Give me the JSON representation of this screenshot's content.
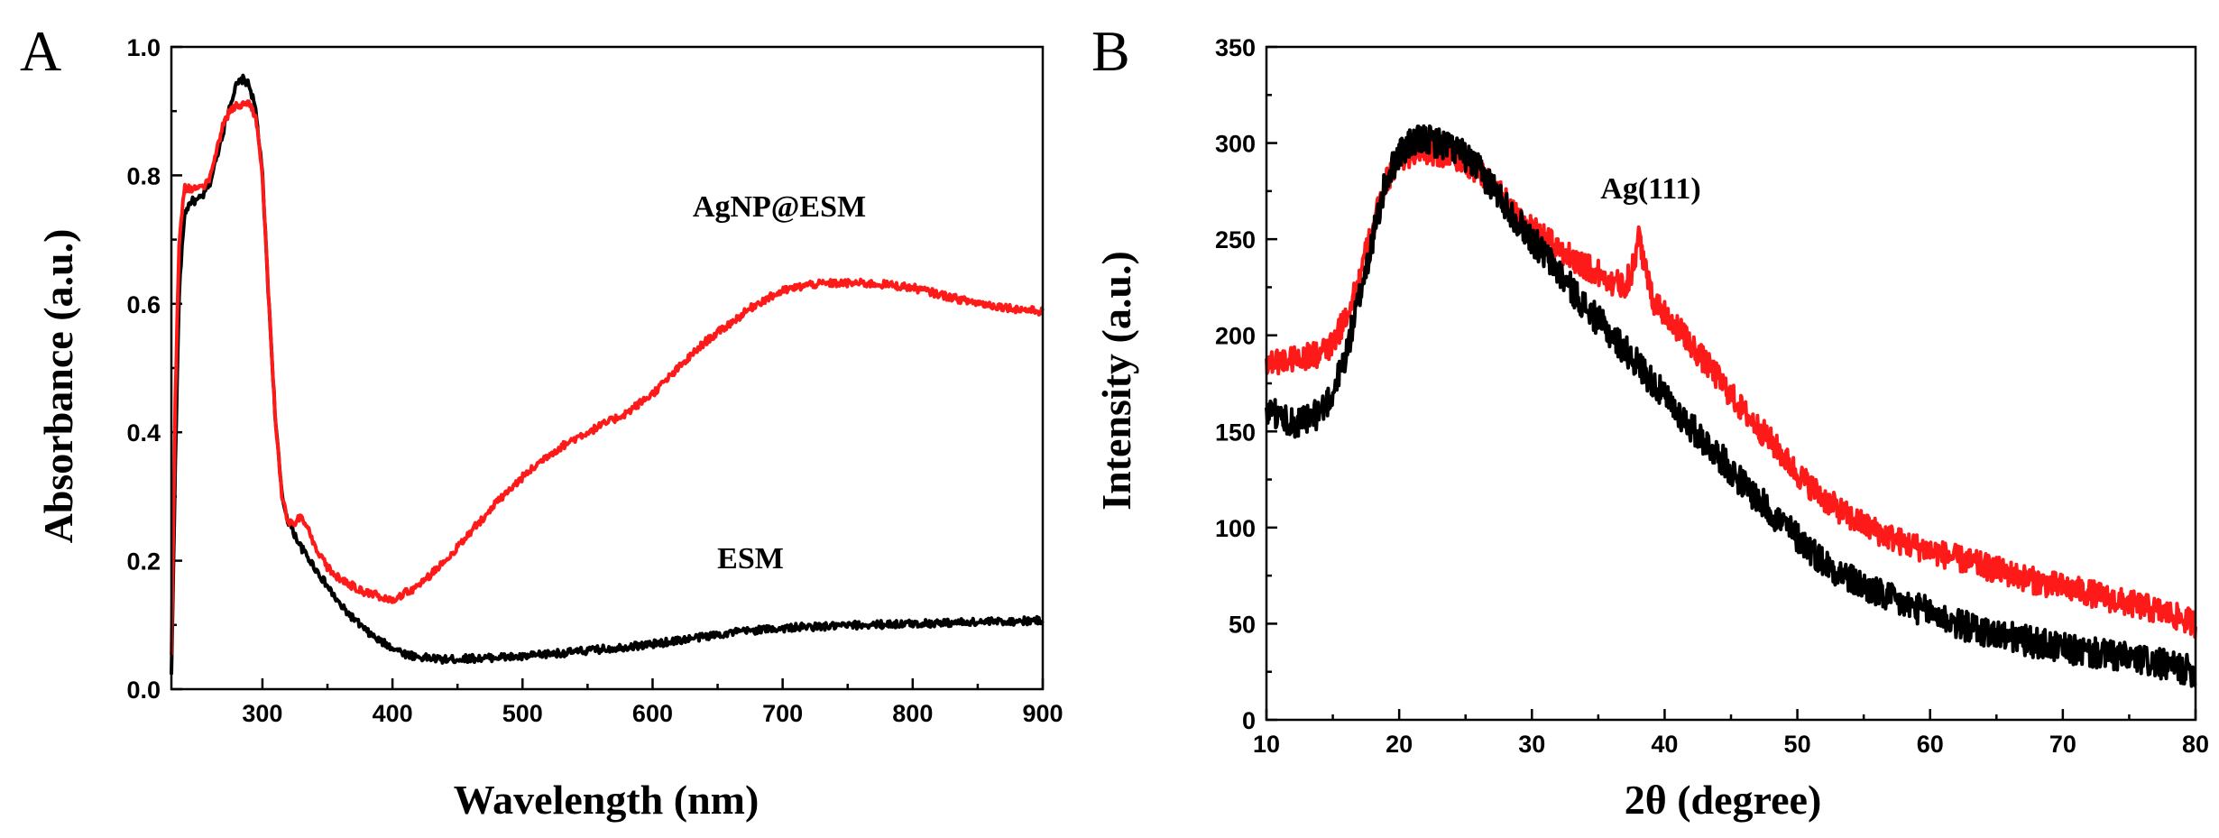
{
  "colors": {
    "red": "#ff1a1a",
    "black": "#000000"
  },
  "chart_data": [
    {
      "panel": "A",
      "type": "line",
      "xlabel": "Wavelength (nm)",
      "ylabel": "Absorbance (a.u.)",
      "xlim": [
        230,
        900
      ],
      "ylim": [
        0.0,
        1.0
      ],
      "xticks": [
        300,
        400,
        500,
        600,
        700,
        800,
        900
      ],
      "yticks": [
        0.0,
        0.2,
        0.4,
        0.6,
        0.8,
        1.0
      ],
      "ytick_labels": [
        "0.0",
        "0.2",
        "0.4",
        "0.6",
        "0.8",
        "1.0"
      ],
      "annotations": [
        {
          "text": "AgNP@ESM",
          "x": 655,
          "y": 0.74
        },
        {
          "text": "ESM",
          "x": 527,
          "y": 0.19
        }
      ],
      "series": [
        {
          "name": "ESM",
          "color": "#000000",
          "x": [
            230,
            233,
            236,
            240,
            245,
            250,
            255,
            260,
            265,
            270,
            275,
            280,
            285,
            290,
            295,
            300,
            305,
            310,
            315,
            320,
            330,
            340,
            350,
            360,
            370,
            380,
            390,
            400,
            410,
            420,
            430,
            440,
            450,
            460,
            470,
            480,
            490,
            500,
            520,
            540,
            560,
            580,
            600,
            620,
            640,
            650,
            660,
            680,
            700,
            720,
            740,
            760,
            780,
            800,
            820,
            840,
            860,
            880,
            900
          ],
          "y": [
            0.02,
            0.35,
            0.62,
            0.74,
            0.76,
            0.76,
            0.77,
            0.79,
            0.83,
            0.87,
            0.91,
            0.94,
            0.95,
            0.94,
            0.9,
            0.8,
            0.6,
            0.42,
            0.3,
            0.26,
            0.22,
            0.19,
            0.16,
            0.13,
            0.11,
            0.09,
            0.075,
            0.065,
            0.055,
            0.05,
            0.048,
            0.046,
            0.047,
            0.048,
            0.048,
            0.05,
            0.05,
            0.05,
            0.055,
            0.058,
            0.062,
            0.066,
            0.07,
            0.076,
            0.082,
            0.085,
            0.088,
            0.092,
            0.095,
            0.097,
            0.098,
            0.1,
            0.101,
            0.102,
            0.103,
            0.104,
            0.105,
            0.106,
            0.107
          ],
          "noise": 0.006
        },
        {
          "name": "AgNP@ESM",
          "color": "#ff1a1a",
          "x": [
            230,
            233,
            236,
            240,
            245,
            250,
            255,
            260,
            265,
            270,
            275,
            280,
            285,
            290,
            295,
            300,
            305,
            310,
            315,
            320,
            325,
            330,
            335,
            340,
            350,
            360,
            370,
            380,
            390,
            400,
            410,
            420,
            430,
            440,
            450,
            460,
            480,
            500,
            520,
            540,
            560,
            580,
            600,
            620,
            640,
            650,
            660,
            680,
            700,
            720,
            740,
            760,
            780,
            800,
            820,
            840,
            860,
            880,
            900
          ],
          "y": [
            0.05,
            0.45,
            0.7,
            0.78,
            0.78,
            0.78,
            0.78,
            0.8,
            0.84,
            0.88,
            0.9,
            0.91,
            0.91,
            0.91,
            0.89,
            0.8,
            0.6,
            0.42,
            0.3,
            0.26,
            0.26,
            0.27,
            0.25,
            0.22,
            0.19,
            0.17,
            0.16,
            0.15,
            0.145,
            0.14,
            0.15,
            0.16,
            0.18,
            0.2,
            0.22,
            0.245,
            0.29,
            0.33,
            0.365,
            0.39,
            0.41,
            0.43,
            0.46,
            0.5,
            0.54,
            0.555,
            0.57,
            0.6,
            0.62,
            0.63,
            0.632,
            0.632,
            0.63,
            0.625,
            0.615,
            0.605,
            0.598,
            0.592,
            0.588
          ],
          "noise": 0.006
        }
      ]
    },
    {
      "panel": "B",
      "type": "line",
      "xlabel": "2θ (degree)",
      "ylabel": "Intensity (a.u.)",
      "xlim": [
        10,
        80
      ],
      "ylim": [
        0,
        350
      ],
      "xticks": [
        10,
        20,
        30,
        40,
        50,
        60,
        70,
        80
      ],
      "yticks": [
        0,
        50,
        100,
        150,
        200,
        250,
        300,
        350
      ],
      "ytick_labels": [
        "0",
        "50",
        "100",
        "150",
        "200",
        "250",
        "300",
        "350"
      ],
      "annotations": [
        {
          "text": "Ag(111)",
          "x": 37.3,
          "y": 270
        }
      ],
      "series": [
        {
          "name": "AgNP@ESM",
          "color": "#ff1a1a",
          "x": [
            10,
            12,
            14,
            15,
            16,
            17,
            18,
            19,
            20,
            21,
            22,
            23,
            24,
            25,
            26,
            27,
            28,
            30,
            32,
            34,
            36,
            37,
            37.6,
            38.1,
            38.6,
            39.2,
            40,
            42,
            44,
            46,
            48,
            50,
            52,
            54,
            56,
            58,
            60,
            62,
            64,
            66,
            68,
            70,
            72,
            74,
            76,
            78,
            80
          ],
          "y": [
            186,
            188,
            190,
            195,
            210,
            230,
            255,
            280,
            292,
            295,
            296,
            295,
            293,
            290,
            285,
            278,
            270,
            255,
            245,
            236,
            228,
            226,
            235,
            252,
            232,
            218,
            212,
            195,
            178,
            160,
            145,
            128,
            115,
            105,
            98,
            92,
            88,
            84,
            80,
            76,
            72,
            69,
            66,
            62,
            59,
            55,
            50
          ],
          "noise": 7
        },
        {
          "name": "ESM",
          "color": "#000000",
          "x": [
            10,
            11,
            12,
            13,
            14,
            15,
            16,
            17,
            18,
            19,
            20,
            21,
            22,
            23,
            24,
            25,
            26,
            27,
            28,
            30,
            32,
            34,
            36,
            38,
            40,
            42,
            44,
            46,
            48,
            50,
            52,
            54,
            56,
            58,
            60,
            62,
            64,
            66,
            68,
            70,
            72,
            74,
            76,
            78,
            80
          ],
          "y": [
            160,
            158,
            155,
            155,
            160,
            170,
            190,
            220,
            250,
            280,
            295,
            300,
            302,
            300,
            298,
            293,
            286,
            278,
            268,
            250,
            233,
            215,
            200,
            185,
            168,
            152,
            138,
            122,
            108,
            95,
            82,
            73,
            66,
            60,
            56,
            50,
            46,
            43,
            40,
            37,
            35,
            33,
            31,
            28,
            25
          ],
          "noise": 8
        }
      ]
    }
  ]
}
